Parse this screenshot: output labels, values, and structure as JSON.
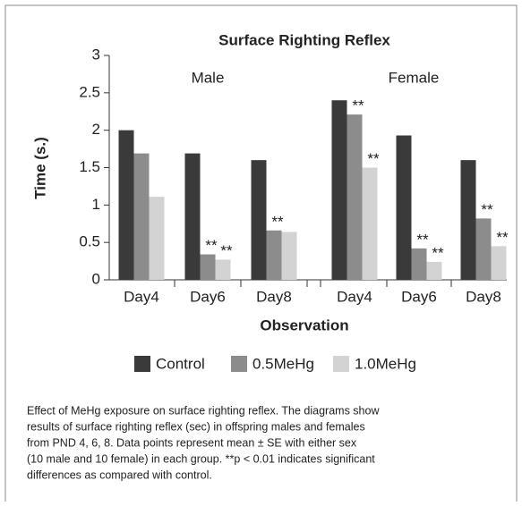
{
  "chart_data": {
    "type": "bar",
    "title": "Surface Righting Reflex",
    "ylabel": "Time (s.)",
    "xlabel": "Observation",
    "groups": [
      "Male",
      "Female"
    ],
    "categories": [
      "Day4",
      "Day6",
      "Day8",
      "Day4",
      "Day6",
      "Day8"
    ],
    "series": [
      {
        "name": "Control",
        "color": "#3a3a3a",
        "values": [
          2.0,
          1.69,
          1.6,
          2.4,
          1.93,
          1.6
        ],
        "significance": [
          null,
          null,
          null,
          null,
          null,
          null
        ]
      },
      {
        "name": "0.5MeHg",
        "color": "#8c8c8c",
        "values": [
          1.69,
          0.34,
          0.66,
          2.21,
          0.42,
          0.82
        ],
        "significance": [
          null,
          "**",
          "**",
          "**",
          "**",
          "**"
        ]
      },
      {
        "name": "1.0MeHg",
        "color": "#d3d3d3",
        "values": [
          1.11,
          0.27,
          0.64,
          1.5,
          0.24,
          0.45
        ],
        "significance": [
          null,
          "**",
          null,
          "**",
          "**",
          "**"
        ]
      }
    ],
    "ylim": [
      0,
      3
    ],
    "yticks": [
      0,
      0.5,
      1,
      1.5,
      2,
      2.5,
      3
    ],
    "grid": false,
    "caption": [
      "Effect of MeHg exposure on surface righting reflex. The diagrams show",
      "results of surface righting reflex (sec) in offspring males and females",
      "from PND 4, 6, 8. Data points represent mean ± SE with either sex",
      "(10 male and 10 female) in each group. **p < 0.01 indicates significant",
      "differences as compared with control."
    ]
  }
}
